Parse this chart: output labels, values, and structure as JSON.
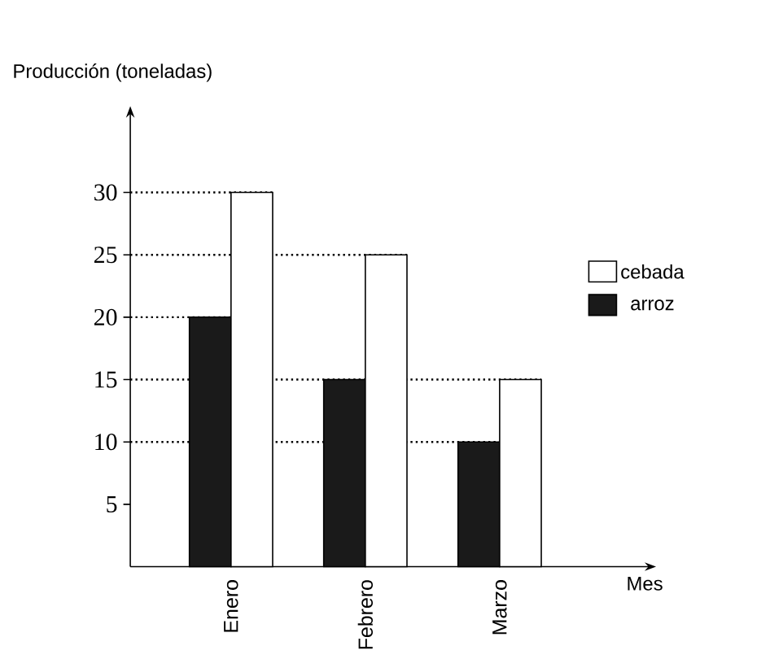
{
  "chart_data": {
    "type": "bar",
    "ylabel": "Producción (toneladas)",
    "xlabel": "Mes",
    "categories": [
      "Enero",
      "Febrero",
      "Marzo"
    ],
    "series": [
      {
        "name": "arroz",
        "color": "#1a1a1a",
        "values": [
          20,
          15,
          10
        ]
      },
      {
        "name": "cebada",
        "color": "#ffffff",
        "values": [
          30,
          25,
          15
        ]
      }
    ],
    "ylim": [
      0,
      36
    ],
    "yticks": [
      5,
      10,
      15,
      20,
      25,
      30
    ],
    "ref_lines": [
      {
        "axis": "y",
        "value": 30,
        "line_style": "dotted"
      },
      {
        "axis": "y",
        "value": 25,
        "line_style": "dotted"
      },
      {
        "axis": "y",
        "value": 20,
        "line_style": "dotted"
      },
      {
        "axis": "y",
        "value": 15,
        "line_style": "dotted"
      },
      {
        "axis": "y",
        "value": 10,
        "line_style": "dotted"
      }
    ],
    "legend": "right",
    "grid": false
  }
}
